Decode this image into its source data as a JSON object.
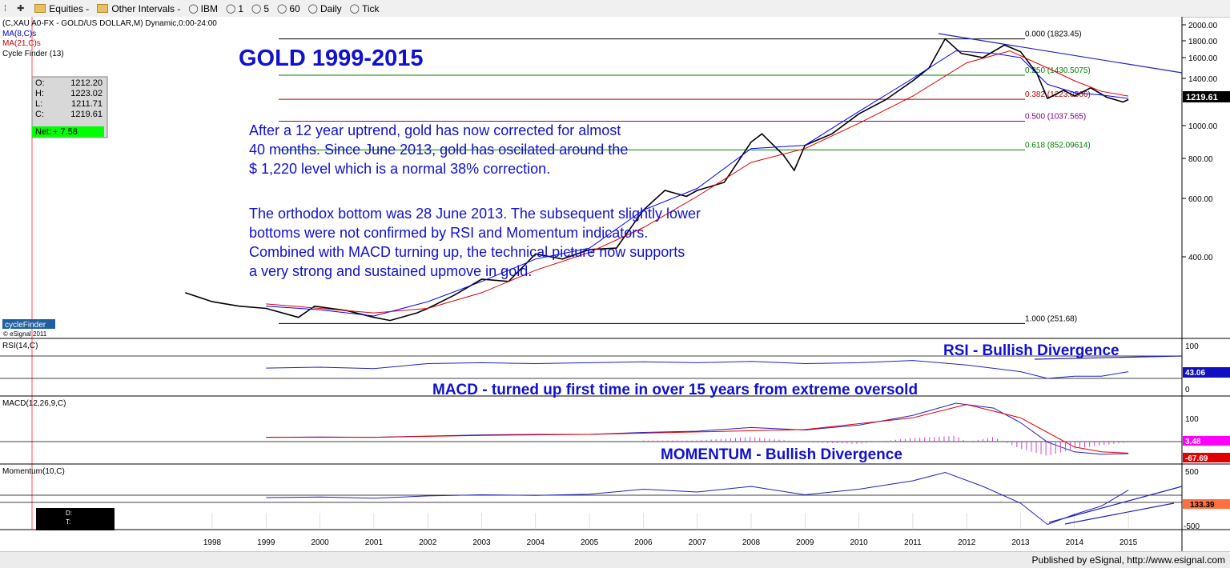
{
  "toolbar": {
    "items": [
      {
        "icon": "grip-icon",
        "label": ""
      },
      {
        "icon": "plus-icon",
        "label": ""
      },
      {
        "icon": "folder-icon",
        "label": "Equities -"
      },
      {
        "icon": "folder-icon",
        "label": "Other Intervals -"
      },
      {
        "icon": "circle-icon",
        "label": "IBM"
      },
      {
        "icon": "circle-icon",
        "label": "1"
      },
      {
        "icon": "circle-icon",
        "label": "5"
      },
      {
        "icon": "circle-icon",
        "label": "60"
      },
      {
        "icon": "circle-icon",
        "label": "Daily"
      },
      {
        "icon": "circle-icon",
        "label": "Tick"
      }
    ]
  },
  "header": {
    "symbol_line": "(C,XAU A0-FX - GOLD/US DOLLAR,M) Dynamic,0:00-24:00",
    "ma8_label": "MA(8,C)s",
    "ma21_label": "MA(21,C)s",
    "cycle_label": "Cycle Finder (13)"
  },
  "ohlc": {
    "o_label": "O:",
    "o": "1212.20",
    "h_label": "H:",
    "h": "1223.02",
    "l_label": "L:",
    "l": "1211.71",
    "c_label": "C:",
    "c": "1219.61",
    "net_label": "Net:",
    "net": "+ 7.58"
  },
  "cyclefinder": {
    "badge": "cycleFinder",
    "copyright": "© eSignal 2011"
  },
  "annotations": {
    "title": "GOLD 1999-2015",
    "paragraph1": [
      "After a 12 year uptrend, gold has now corrected for almost",
      "40 months. Since June 2013, gold has oscilated around the",
      "$ 1,220 level which is a normal 38% correction."
    ],
    "paragraph2": [
      "The orthodox bottom was 28 June 2013. The subsequent slightly lower",
      "bottoms were not confirmed by RSI and Momentum indicators.",
      "Combined with MACD turning up, the technical picture now supports",
      "a very strong and sustained upmove in gold."
    ],
    "rsi_title": "RSI - Bullish Divergence",
    "macd_title": "MACD - turned up first time in over 15 years from extreme oversold",
    "momentum_title": "MOMENTUM - Bullish Divergence"
  },
  "fib_levels": [
    {
      "label": "0.000 (1823.45)",
      "value": 1823.45,
      "color": "#000000"
    },
    {
      "label": "0.250 (1430.5075)",
      "value": 1430.5075,
      "color": "#008000"
    },
    {
      "label": "0.382 (1223.0566)",
      "value": 1223.0566,
      "color": "#b00000"
    },
    {
      "label": "0.500 (1037.565)",
      "value": 1037.565,
      "color": "#800080"
    },
    {
      "label": "0.618 (852.09614)",
      "value": 852.09614,
      "color": "#008000"
    },
    {
      "label": "1.000 (251.68)",
      "value": 251.68,
      "color": "#000000"
    }
  ],
  "price_axis": {
    "ticks": [
      "2000.00",
      "1800.00",
      "1600.00",
      "1400.00",
      "1000.00",
      "800.00",
      "600.00",
      "400.00"
    ],
    "tick_values": [
      2000,
      1800,
      1600,
      1400,
      1000,
      800,
      600,
      400
    ],
    "last_value": "1219.61"
  },
  "panes": {
    "rsi": {
      "label": "RSI(14,C)",
      "ticks": [
        "100",
        "0"
      ],
      "value": "43.06"
    },
    "macd": {
      "label": "MACD(12,26,9,C)",
      "ticks": [
        "100"
      ],
      "value1": "3.48",
      "value2": "-67.69"
    },
    "momentum": {
      "label": "Momentum(10,C)",
      "ticks": [
        "500",
        "-500"
      ],
      "value1": "133.39"
    }
  },
  "momentum_box": {
    "d_label": "D:",
    "t_label": "T:"
  },
  "years": [
    "1998",
    "1999",
    "2000",
    "2001",
    "2002",
    "2003",
    "2004",
    "2005",
    "2006",
    "2007",
    "2008",
    "2009",
    "2010",
    "2011",
    "2012",
    "2013",
    "2014",
    "2015"
  ],
  "chart_data": {
    "type": "line",
    "x_unit": "year",
    "series": [
      {
        "name": "GOLD/US DOLLAR",
        "color": "#000000",
        "x": [
          1997.5,
          1998.0,
          1998.5,
          1999.0,
          1999.6,
          1999.9,
          2000.5,
          2001.0,
          2001.3,
          2001.8,
          2002.0,
          2002.5,
          2003.0,
          2003.5,
          2004.0,
          2004.5,
          2005.0,
          2005.5,
          2006.0,
          2006.4,
          2006.8,
          2007.0,
          2007.5,
          2008.0,
          2008.2,
          2008.6,
          2008.8,
          2009.0,
          2009.5,
          2010.0,
          2010.5,
          2011.0,
          2011.3,
          2011.6,
          2011.9,
          2012.3,
          2012.7,
          2013.0,
          2013.3,
          2013.5,
          2013.8,
          2014.0,
          2014.3,
          2014.6,
          2014.9,
          2015.0
        ],
        "y": [
          320,
          300,
          290,
          285,
          265,
          290,
          280,
          265,
          258,
          275,
          285,
          315,
          350,
          345,
          410,
          395,
          425,
          430,
          560,
          640,
          610,
          640,
          680,
          900,
          950,
          820,
          740,
          880,
          950,
          1100,
          1220,
          1380,
          1500,
          1825,
          1650,
          1600,
          1750,
          1670,
          1450,
          1230,
          1300,
          1250,
          1320,
          1240,
          1200,
          1220
        ]
      },
      {
        "name": "MA(8,C)s",
        "color": "#0000ff",
        "x": [
          1999.0,
          2000.0,
          2001.0,
          2002.0,
          2003.0,
          2004.0,
          2005.0,
          2006.0,
          2007.0,
          2008.0,
          2009.0,
          2010.0,
          2011.0,
          2011.8,
          2012.5,
          2013.0,
          2013.5,
          2014.0,
          2014.5,
          2015.0
        ],
        "y": [
          290,
          282,
          268,
          300,
          345,
          395,
          430,
          560,
          650,
          860,
          880,
          1120,
          1400,
          1680,
          1650,
          1600,
          1350,
          1280,
          1260,
          1230
        ]
      },
      {
        "name": "MA(21,C)s",
        "color": "#e00000",
        "x": [
          1999.0,
          2000.0,
          2001.0,
          2002.0,
          2003.0,
          2004.0,
          2005.0,
          2006.0,
          2007.0,
          2008.0,
          2009.0,
          2010.0,
          2011.0,
          2012.0,
          2012.8,
          2013.5,
          2014.0,
          2014.5,
          2015.0
        ],
        "y": [
          295,
          285,
          275,
          285,
          320,
          370,
          415,
          500,
          610,
          780,
          860,
          1020,
          1250,
          1550,
          1680,
          1500,
          1380,
          1290,
          1250
        ]
      }
    ],
    "rsi_series": {
      "x": [
        1999.0,
        2000.0,
        2001.0,
        2002.0,
        2003.0,
        2004.0,
        2005.0,
        2006.0,
        2007.0,
        2008.0,
        2009.0,
        2010.0,
        2011.0,
        2012.0,
        2013.0,
        2013.5,
        2014.0,
        2014.5,
        2015.0
      ],
      "y": [
        48,
        50,
        47,
        58,
        60,
        58,
        60,
        62,
        60,
        63,
        58,
        60,
        65,
        55,
        40,
        25,
        30,
        30,
        40
      ]
    },
    "macd_series": {
      "x": [
        1999.0,
        2000.0,
        2001.0,
        2002.0,
        2003.0,
        2004.0,
        2005.0,
        2006.0,
        2007.0,
        2008.0,
        2009.0,
        2010.0,
        2011.0,
        2011.8,
        2012.5,
        2013.0,
        2013.5,
        2014.0,
        2014.5,
        2015.0
      ],
      "y": [
        0,
        1,
        0,
        5,
        10,
        12,
        12,
        20,
        25,
        40,
        30,
        50,
        90,
        140,
        120,
        60,
        -20,
        -60,
        -70,
        -67
      ]
    },
    "macd_signal": {
      "x": [
        1999.0,
        2001.0,
        2003.0,
        2005.0,
        2007.0,
        2009.0,
        2011.0,
        2012.0,
        2013.0,
        2013.5,
        2014.0,
        2014.5,
        2015.0
      ],
      "y": [
        0,
        0,
        8,
        12,
        22,
        32,
        80,
        135,
        80,
        20,
        -40,
        -60,
        -65
      ]
    },
    "momentum_series": {
      "x": [
        1999.0,
        2000.0,
        2001.0,
        2002.0,
        2003.0,
        2004.0,
        2005.0,
        2006.0,
        2007.0,
        2008.0,
        2009.0,
        2010.0,
        2011.0,
        2011.6,
        2012.3,
        2013.0,
        2013.5,
        2014.0,
        2014.5,
        2015.0
      ],
      "y": [
        0,
        10,
        -10,
        30,
        50,
        40,
        60,
        150,
        100,
        200,
        50,
        150,
        300,
        450,
        200,
        -100,
        -480,
        -300,
        -150,
        133
      ]
    },
    "xlim": [
      1997.2,
      2016.0
    ],
    "price_range": [
      240,
      2050
    ]
  }
}
